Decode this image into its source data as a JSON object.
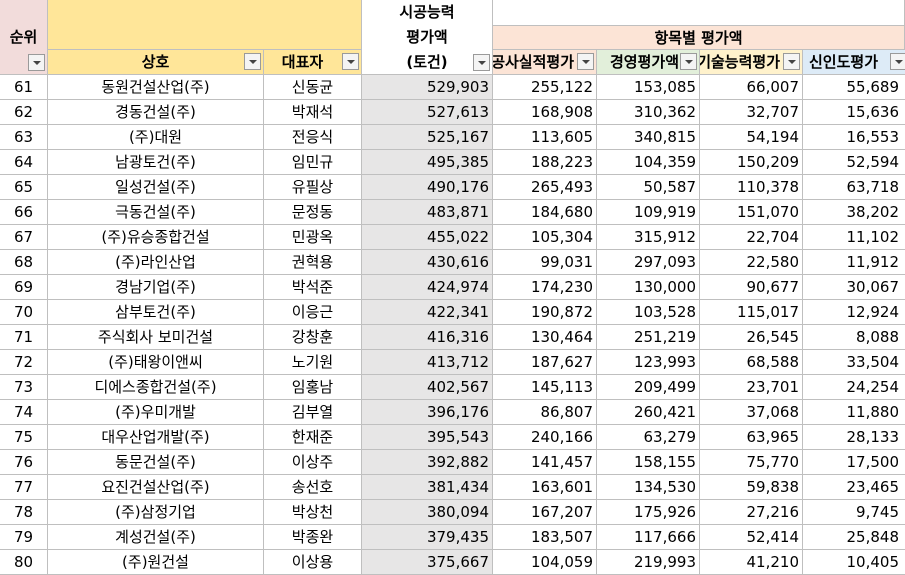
{
  "header": {
    "rank": "순위",
    "company": "상호",
    "ceo": "대표자",
    "capacity_line1": "시공능력",
    "capacity_line2": "평가액",
    "capacity_line3": "(토건)",
    "items_group": "항목별 평가액",
    "col_construction": "공사실적평가",
    "col_management": "경영평가액",
    "col_technology": "기술능력평가",
    "col_credibility": "신인도평가"
  },
  "colors": {
    "rank_header_bg": "#f2dcdb",
    "company_header_bg": "#ffe699",
    "capacity_col_bg": "#e7e6e6",
    "items_group_bg": "#fce4d6",
    "col_construction_bg": "#fce4d6",
    "col_management_bg": "#e2efda",
    "col_technology_bg": "#fff2cc",
    "col_credibility_bg": "#ddebf7"
  },
  "rows": [
    {
      "rank": "61",
      "company": "동원건설산업(주)",
      "ceo": "신동균",
      "capacity": "529,903",
      "construction": "255,122",
      "management": "153,085",
      "technology": "66,007",
      "credibility": "55,689"
    },
    {
      "rank": "62",
      "company": "경동건설(주)",
      "ceo": "박재석",
      "capacity": "527,613",
      "construction": "168,908",
      "management": "310,362",
      "technology": "32,707",
      "credibility": "15,636"
    },
    {
      "rank": "63",
      "company": "(주)대원",
      "ceo": "전응식",
      "capacity": "525,167",
      "construction": "113,605",
      "management": "340,815",
      "technology": "54,194",
      "credibility": "16,553"
    },
    {
      "rank": "64",
      "company": "남광토건(주)",
      "ceo": "임민규",
      "capacity": "495,385",
      "construction": "188,223",
      "management": "104,359",
      "technology": "150,209",
      "credibility": "52,594"
    },
    {
      "rank": "65",
      "company": "일성건설(주)",
      "ceo": "유필상",
      "capacity": "490,176",
      "construction": "265,493",
      "management": "50,587",
      "technology": "110,378",
      "credibility": "63,718"
    },
    {
      "rank": "66",
      "company": "극동건설(주)",
      "ceo": "문정동",
      "capacity": "483,871",
      "construction": "184,680",
      "management": "109,919",
      "technology": "151,070",
      "credibility": "38,202"
    },
    {
      "rank": "67",
      "company": "(주)유승종합건설",
      "ceo": "민광옥",
      "capacity": "455,022",
      "construction": "105,304",
      "management": "315,912",
      "technology": "22,704",
      "credibility": "11,102"
    },
    {
      "rank": "68",
      "company": "(주)라인산업",
      "ceo": "권혁용",
      "capacity": "430,616",
      "construction": "99,031",
      "management": "297,093",
      "technology": "22,580",
      "credibility": "11,912"
    },
    {
      "rank": "69",
      "company": "경남기업(주)",
      "ceo": "박석준",
      "capacity": "424,974",
      "construction": "174,230",
      "management": "130,000",
      "technology": "90,677",
      "credibility": "30,067"
    },
    {
      "rank": "70",
      "company": "삼부토건(주)",
      "ceo": "이응근",
      "capacity": "422,341",
      "construction": "190,872",
      "management": "103,528",
      "technology": "115,017",
      "credibility": "12,924"
    },
    {
      "rank": "71",
      "company": "주식회사 보미건설",
      "ceo": "강창훈",
      "capacity": "416,316",
      "construction": "130,464",
      "management": "251,219",
      "technology": "26,545",
      "credibility": "8,088"
    },
    {
      "rank": "72",
      "company": "(주)태왕이앤씨",
      "ceo": "노기원",
      "capacity": "413,712",
      "construction": "187,627",
      "management": "123,993",
      "technology": "68,588",
      "credibility": "33,504"
    },
    {
      "rank": "73",
      "company": "디에스종합건설(주)",
      "ceo": "임홍남",
      "capacity": "402,567",
      "construction": "145,113",
      "management": "209,499",
      "technology": "23,701",
      "credibility": "24,254"
    },
    {
      "rank": "74",
      "company": "(주)우미개발",
      "ceo": "김부열",
      "capacity": "396,176",
      "construction": "86,807",
      "management": "260,421",
      "technology": "37,068",
      "credibility": "11,880"
    },
    {
      "rank": "75",
      "company": "대우산업개발(주)",
      "ceo": "한재준",
      "capacity": "395,543",
      "construction": "240,166",
      "management": "63,279",
      "technology": "63,965",
      "credibility": "28,133"
    },
    {
      "rank": "76",
      "company": "동문건설(주)",
      "ceo": "이상주",
      "capacity": "392,882",
      "construction": "141,457",
      "management": "158,155",
      "technology": "75,770",
      "credibility": "17,500"
    },
    {
      "rank": "77",
      "company": "요진건설산업(주)",
      "ceo": "송선호",
      "capacity": "381,434",
      "construction": "163,601",
      "management": "134,530",
      "technology": "59,838",
      "credibility": "23,465"
    },
    {
      "rank": "78",
      "company": "(주)삼정기업",
      "ceo": "박상천",
      "capacity": "380,094",
      "construction": "167,207",
      "management": "175,926",
      "technology": "27,216",
      "credibility": "9,745"
    },
    {
      "rank": "79",
      "company": "계성건설(주)",
      "ceo": "박종완",
      "capacity": "379,435",
      "construction": "183,507",
      "management": "117,666",
      "technology": "52,414",
      "credibility": "25,848"
    },
    {
      "rank": "80",
      "company": "(주)원건설",
      "ceo": "이상용",
      "capacity": "375,667",
      "construction": "104,059",
      "management": "219,993",
      "technology": "41,210",
      "credibility": "10,405"
    }
  ]
}
